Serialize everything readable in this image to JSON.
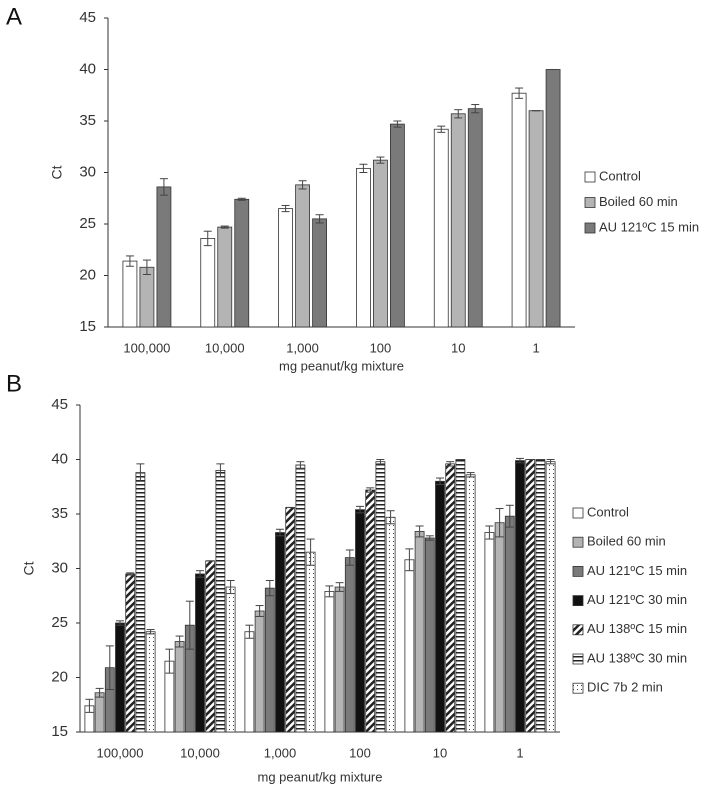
{
  "chart_data": [
    {
      "type": "bar",
      "panel_label": "A",
      "y_label": "Ct",
      "x_label": "mg peanut/kg mixture",
      "categories": [
        "100,000",
        "10,000",
        "1,000",
        "100",
        "10",
        "1"
      ],
      "ylim": [
        15,
        45
      ],
      "yticks": [
        15,
        20,
        25,
        30,
        35,
        40,
        45
      ],
      "series": [
        {
          "name": "Control",
          "color": "#ffffff",
          "pattern": "solid",
          "values": [
            21.4,
            23.6,
            26.5,
            30.4,
            34.2,
            37.7
          ],
          "errors": [
            0.5,
            0.7,
            0.3,
            0.4,
            0.3,
            0.5
          ]
        },
        {
          "name": "Boiled 60 min",
          "color": "#b4b4b4",
          "pattern": "solid",
          "values": [
            20.8,
            24.7,
            28.8,
            31.2,
            35.7,
            36.0
          ],
          "errors": [
            0.7,
            0.1,
            0.4,
            0.3,
            0.4,
            0
          ]
        },
        {
          "name": "AU 121ºC 15 min",
          "color": "#7a7a7a",
          "pattern": "solid",
          "values": [
            28.6,
            27.4,
            25.5,
            34.7,
            36.2,
            40.0
          ],
          "errors": [
            0.8,
            0.1,
            0.4,
            0.3,
            0.4,
            0
          ]
        }
      ]
    },
    {
      "type": "bar",
      "panel_label": "B",
      "y_label": "Ct",
      "x_label": "mg peanut/kg mixture",
      "categories": [
        "100,000",
        "10,000",
        "1,000",
        "100",
        "10",
        "1"
      ],
      "ylim": [
        15,
        45
      ],
      "yticks": [
        15,
        20,
        25,
        30,
        35,
        40,
        45
      ],
      "series": [
        {
          "name": "Control",
          "color": "#ffffff",
          "pattern": "solid",
          "values": [
            17.4,
            21.5,
            24.2,
            27.9,
            30.8,
            33.3
          ],
          "errors": [
            0.6,
            1.1,
            0.6,
            0.5,
            1.0,
            0.6
          ]
        },
        {
          "name": "Boiled 60 min",
          "color": "#b4b4b4",
          "pattern": "solid",
          "values": [
            18.6,
            23.3,
            26.1,
            28.3,
            33.4,
            34.2
          ],
          "errors": [
            0.4,
            0.5,
            0.5,
            0.4,
            0.5,
            1.3
          ]
        },
        {
          "name": "AU 121ºC 15 min",
          "color": "#7a7a7a",
          "pattern": "solid",
          "values": [
            20.9,
            24.8,
            28.2,
            31.0,
            32.8,
            34.8
          ],
          "errors": [
            2.0,
            2.2,
            0.7,
            0.7,
            0.2,
            1.0
          ]
        },
        {
          "name": "AU 121ºC 30 min",
          "color": "#111111",
          "pattern": "solid",
          "values": [
            25.0,
            29.5,
            33.3,
            35.4,
            38.0,
            39.9
          ],
          "errors": [
            0.2,
            0.3,
            0.3,
            0.3,
            0.3,
            0.2
          ]
        },
        {
          "name": "AU 138ºC 15 min",
          "color": "#222222",
          "pattern": "diagonal",
          "values": [
            29.5,
            30.7,
            35.6,
            37.2,
            39.6,
            40.0
          ],
          "errors": [
            0.1,
            0,
            0,
            0.2,
            0.2,
            0
          ]
        },
        {
          "name": "AU 138ºC 30 min",
          "color": "#222222",
          "pattern": "horizontal",
          "values": [
            38.8,
            39.0,
            39.5,
            39.8,
            40.0,
            40.0
          ],
          "errors": [
            0.8,
            0.6,
            0.3,
            0.2,
            0,
            0
          ]
        },
        {
          "name": "DIC 7b 2 min",
          "color": "#444444",
          "pattern": "dotted",
          "values": [
            24.2,
            28.3,
            31.5,
            34.7,
            38.6,
            39.8
          ],
          "errors": [
            0.2,
            0.6,
            1.2,
            0.6,
            0.2,
            0.2
          ]
        }
      ]
    }
  ]
}
